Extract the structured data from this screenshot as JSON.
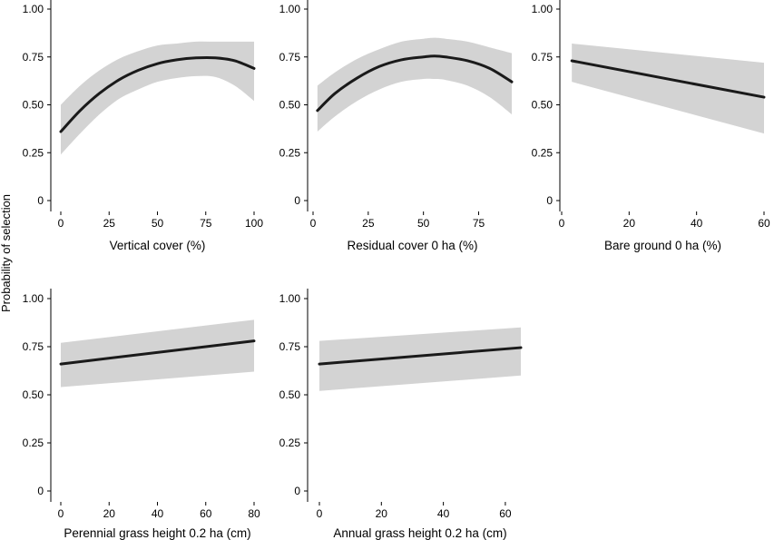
{
  "figure": {
    "ylabel": "Probability of selection"
  },
  "chart_data": [
    {
      "type": "line",
      "xlabel": "Vertical cover (%)",
      "xlim": [
        0,
        100
      ],
      "xticks": [
        0,
        25,
        50,
        75,
        100
      ],
      "ylim": [
        0,
        1
      ],
      "yticks": [
        "0",
        "0.25",
        "0.50",
        "0.75",
        "1.00"
      ],
      "x": [
        0,
        10,
        20,
        30,
        40,
        50,
        60,
        70,
        80,
        90,
        100
      ],
      "y": [
        0.36,
        0.47,
        0.56,
        0.63,
        0.68,
        0.715,
        0.735,
        0.745,
        0.745,
        0.73,
        0.69
      ],
      "ci_lower": [
        0.24,
        0.35,
        0.45,
        0.53,
        0.58,
        0.62,
        0.64,
        0.65,
        0.645,
        0.6,
        0.52
      ],
      "ci_upper": [
        0.5,
        0.6,
        0.68,
        0.74,
        0.78,
        0.81,
        0.82,
        0.83,
        0.83,
        0.83,
        0.83
      ],
      "grid": false
    },
    {
      "type": "line",
      "xlabel": "Residual cover 0 ha (%)",
      "xlim": [
        0,
        90
      ],
      "xticks": [
        0,
        25,
        50,
        75
      ],
      "ylim": [
        0,
        1
      ],
      "yticks": [
        "0",
        "0.25",
        "0.50",
        "0.75",
        "1.00"
      ],
      "x": [
        2,
        10,
        20,
        30,
        40,
        50,
        55,
        60,
        70,
        80,
        90
      ],
      "y": [
        0.47,
        0.56,
        0.64,
        0.7,
        0.735,
        0.75,
        0.755,
        0.75,
        0.73,
        0.69,
        0.62
      ],
      "ci_lower": [
        0.36,
        0.44,
        0.52,
        0.58,
        0.62,
        0.635,
        0.635,
        0.63,
        0.6,
        0.54,
        0.45
      ],
      "ci_upper": [
        0.6,
        0.67,
        0.74,
        0.79,
        0.83,
        0.845,
        0.85,
        0.845,
        0.83,
        0.8,
        0.77
      ],
      "grid": false
    },
    {
      "type": "line",
      "xlabel": "Bare ground 0 ha (%)",
      "xlim": [
        0,
        60
      ],
      "xticks": [
        0,
        20,
        40,
        60
      ],
      "ylim": [
        0,
        1
      ],
      "yticks": [
        "0",
        "0.25",
        "0.50",
        "0.75",
        "1.00"
      ],
      "x": [
        3,
        60
      ],
      "y": [
        0.73,
        0.54
      ],
      "ci_lower": [
        0.62,
        0.35
      ],
      "ci_upper": [
        0.82,
        0.72
      ],
      "grid": false
    },
    {
      "type": "line",
      "xlabel": "Perennial grass height 0.2 ha (cm)",
      "xlim": [
        0,
        80
      ],
      "xticks": [
        0,
        20,
        40,
        60,
        80
      ],
      "ylim": [
        0,
        1
      ],
      "yticks": [
        "0",
        "0.25",
        "0.50",
        "0.75",
        "1.00"
      ],
      "x": [
        0,
        80
      ],
      "y": [
        0.66,
        0.78
      ],
      "ci_lower": [
        0.54,
        0.62
      ],
      "ci_upper": [
        0.77,
        0.89
      ],
      "grid": false
    },
    {
      "type": "line",
      "xlabel": "Annual grass height 0.2 ha (cm)",
      "xlim": [
        0,
        65
      ],
      "xticks": [
        0,
        20,
        40,
        60
      ],
      "ylim": [
        0,
        1
      ],
      "yticks": [
        "0",
        "0.25",
        "0.50",
        "0.75",
        "1.00"
      ],
      "x": [
        0,
        65
      ],
      "y": [
        0.66,
        0.745
      ],
      "ci_lower": [
        0.52,
        0.6
      ],
      "ci_upper": [
        0.78,
        0.85
      ],
      "grid": false
    }
  ]
}
